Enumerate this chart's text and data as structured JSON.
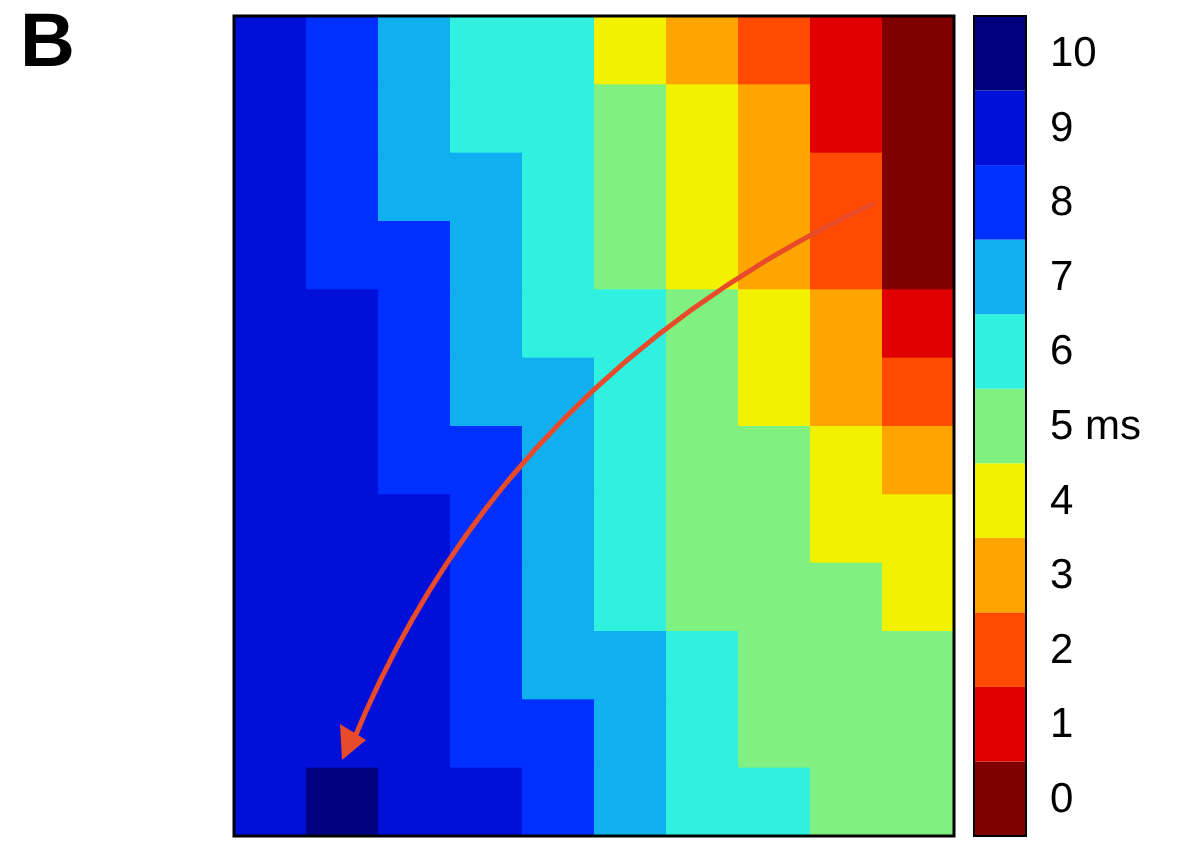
{
  "chart_data": {
    "type": "heatmap",
    "title": "B",
    "categories": [
      null,
      null,
      null,
      null,
      null,
      null,
      null,
      null,
      null,
      null
    ],
    "y_categories": [
      null,
      null,
      null,
      null,
      null,
      null,
      null,
      null,
      null,
      null,
      null,
      null
    ],
    "cells": [
      [
        9,
        8,
        7,
        6,
        6,
        4,
        3,
        2,
        1,
        0
      ],
      [
        9,
        8,
        7,
        6,
        6,
        5,
        4,
        3,
        1,
        0
      ],
      [
        9,
        8,
        7,
        7,
        6,
        5,
        4,
        3,
        2,
        0
      ],
      [
        9,
        8,
        8,
        7,
        6,
        5,
        4,
        3,
        2,
        0
      ],
      [
        9,
        9,
        8,
        7,
        6,
        6,
        5,
        4,
        3,
        1
      ],
      [
        9,
        9,
        8,
        7,
        7,
        6,
        5,
        4,
        3,
        2
      ],
      [
        9,
        9,
        8,
        8,
        7,
        6,
        5,
        5,
        4,
        3
      ],
      [
        9,
        9,
        9,
        8,
        7,
        6,
        5,
        5,
        4,
        4
      ],
      [
        9,
        9,
        9,
        8,
        7,
        6,
        5,
        5,
        5,
        4
      ],
      [
        9,
        9,
        9,
        8,
        7,
        7,
        6,
        5,
        5,
        5
      ],
      [
        9,
        9,
        9,
        8,
        8,
        7,
        6,
        5,
        5,
        5
      ],
      [
        9,
        10,
        9,
        9,
        8,
        7,
        6,
        6,
        5,
        5
      ]
    ],
    "clim": [
      -0.5,
      10.5
    ],
    "cticks": [
      0,
      1,
      2,
      3,
      4,
      {
        "value": 5,
        "label": "5 ms"
      },
      6,
      7,
      8,
      9,
      10
    ],
    "tick_labels": false
  }
}
